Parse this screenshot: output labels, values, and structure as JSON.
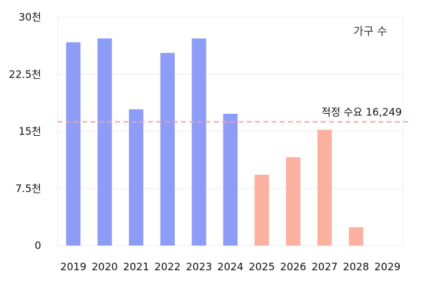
{
  "chart_data": {
    "type": "bar",
    "title": "",
    "xlabel": "",
    "ylabel": "",
    "legend": {
      "label": "가구 수",
      "placement": "top-right"
    },
    "categories": [
      "2019",
      "2020",
      "2021",
      "2022",
      "2023",
      "2024",
      "2025",
      "2026",
      "2027",
      "2028",
      "2029"
    ],
    "series": [
      {
        "name": "가구 수",
        "values": [
          26700,
          27200,
          17900,
          25300,
          27200,
          17300,
          9300,
          11600,
          15200,
          2400,
          0
        ],
        "colors": [
          "#8c9cf7",
          "#8c9cf7",
          "#8c9cf7",
          "#8c9cf7",
          "#8c9cf7",
          "#8c9cf7",
          "#fcb0a0",
          "#fcb0a0",
          "#fcb0a0",
          "#fcb0a0",
          "#fcb0a0"
        ]
      }
    ],
    "ylim": [
      0,
      30000
    ],
    "yticks": [
      {
        "value": 0,
        "label": "0"
      },
      {
        "value": 7500,
        "label": "7.5천"
      },
      {
        "value": 15000,
        "label": "15천"
      },
      {
        "value": 22500,
        "label": "22.5천"
      },
      {
        "value": 30000,
        "label": "30천"
      }
    ],
    "grid": true,
    "reference_line": {
      "value": 16249,
      "label": "적정 수요 16,249",
      "color": "#f4a3a3",
      "style": "dashed"
    }
  }
}
